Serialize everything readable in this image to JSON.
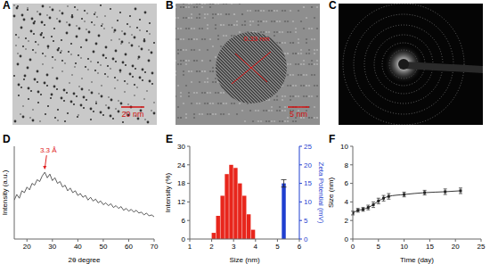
{
  "images": [
    {
      "panel": "A",
      "scale_bar": "20 nm"
    },
    {
      "panel": "B",
      "scale_bar": "5 nm",
      "annotation": "0.33 nm"
    },
    {
      "panel": "C"
    }
  ],
  "chart_data": [
    {
      "panel": "D",
      "type": "line",
      "x": [
        15,
        16,
        17,
        18,
        19,
        20,
        21,
        22,
        23,
        24,
        25,
        26,
        27,
        28,
        29,
        30,
        31,
        32,
        33,
        34,
        35,
        36,
        37,
        38,
        39,
        40,
        41,
        42,
        43,
        44,
        45,
        46,
        47,
        48,
        49,
        50,
        51,
        52,
        53,
        54,
        55,
        56,
        57,
        58,
        59,
        60,
        61,
        62,
        63,
        64,
        65,
        66,
        67,
        68,
        69,
        70
      ],
      "values": [
        42,
        48,
        44,
        52,
        50,
        56,
        53,
        60,
        58,
        64,
        62,
        68,
        72,
        66,
        70,
        63,
        66,
        60,
        62,
        56,
        58,
        52,
        55,
        50,
        52,
        47,
        49,
        45,
        47,
        42,
        45,
        41,
        43,
        39,
        41,
        37,
        39,
        36,
        38,
        34,
        36,
        33,
        35,
        31,
        33,
        30,
        32,
        29,
        31,
        28,
        29,
        26,
        28,
        25,
        26,
        24
      ],
      "xlim": [
        15,
        70
      ],
      "xticks": [
        20,
        30,
        40,
        50,
        60,
        70
      ],
      "ylim": [
        0,
        100
      ],
      "tick_labels": "x",
      "x_label": "2θ degree",
      "y_label": "Intensity (a.u.)",
      "color": "#333333",
      "annotation": {
        "text": "3.3 Å",
        "x": 27,
        "y": 72,
        "color": "#e02020"
      }
    },
    {
      "panel": "E",
      "type": "bar",
      "series": [
        {
          "x": [
            2.1,
            2.3,
            2.5,
            2.7,
            2.9,
            3.1,
            3.3,
            3.5,
            3.7,
            3.9
          ],
          "values": [
            2,
            7.5,
            14,
            21,
            24,
            23,
            18,
            14,
            8,
            3
          ],
          "color": "#e8261c"
        },
        {
          "x": [
            5.3
          ],
          "values": [
            15
          ],
          "error": [
            1
          ],
          "color": "#1f3fd0",
          "axis": "y2"
        }
      ],
      "xlim": [
        1,
        6
      ],
      "xticks": [
        1,
        2,
        3,
        4,
        5,
        6
      ],
      "ylim": [
        0,
        30
      ],
      "yticks": [
        0,
        6,
        12,
        18,
        24,
        30
      ],
      "y2lim": [
        0,
        25
      ],
      "y2ticks": [
        0,
        5,
        10,
        15,
        20,
        25
      ],
      "x_label": "Size (nm)",
      "y_label": "Intensity (%)",
      "y2_label": "Zeta Potential (mV)"
    },
    {
      "panel": "F",
      "type": "line",
      "x": [
        0,
        1,
        2,
        3,
        4,
        5,
        6,
        7,
        10,
        14,
        18,
        21
      ],
      "values": [
        2.8,
        3.1,
        3.2,
        3.4,
        3.7,
        4.1,
        4.4,
        4.6,
        4.8,
        5.0,
        5.1,
        5.2
      ],
      "error": [
        0.2,
        0.2,
        0.2,
        0.25,
        0.3,
        0.3,
        0.3,
        0.3,
        0.25,
        0.25,
        0.3,
        0.3
      ],
      "xlim": [
        0,
        25
      ],
      "xticks": [
        0,
        5,
        10,
        15,
        20,
        25
      ],
      "ylim": [
        0,
        10
      ],
      "yticks": [
        0,
        2,
        4,
        6,
        8,
        10
      ],
      "x_label": "Time (day)",
      "y_label": "Size (nm)",
      "color": "#222222",
      "marker": "square"
    }
  ]
}
